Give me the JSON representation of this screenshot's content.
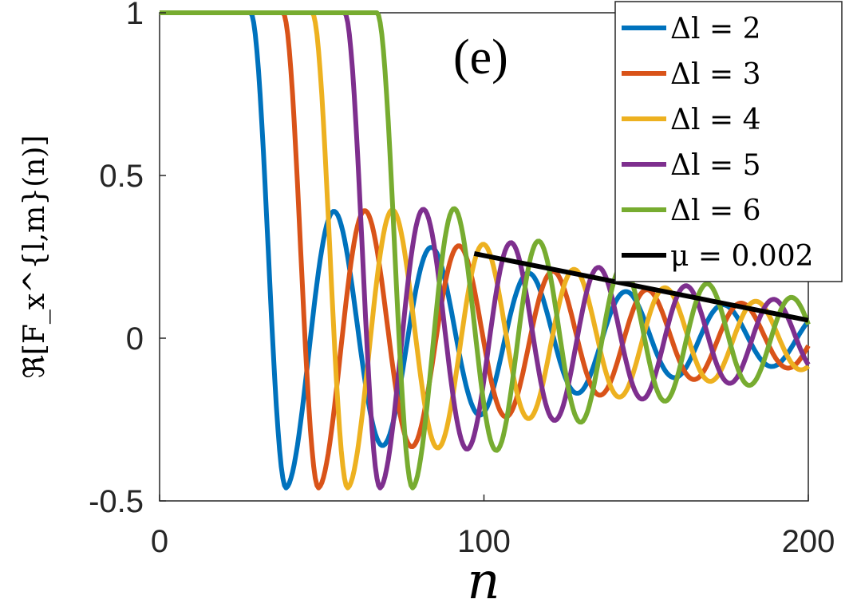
{
  "chart_data": {
    "type": "line",
    "panel_label": "(e)",
    "xlabel": "n",
    "ylabel": "ℜ[F_x^{l,m}(n)]",
    "xlim": [
      0,
      200
    ],
    "ylim": [
      -0.5,
      1
    ],
    "xticks": [
      "0",
      "100",
      "200"
    ],
    "yticks": [
      "-0.5",
      "0",
      "0.5",
      "1"
    ],
    "legend_position": "top-right",
    "series": [
      {
        "name": "Δl = 2",
        "color": "#0072BD",
        "onset": 28,
        "period": 30
      },
      {
        "name": "Δl = 3",
        "color": "#D95319",
        "onset": 38,
        "period": 29
      },
      {
        "name": "Δl = 4",
        "color": "#EDB120",
        "onset": 47,
        "period": 28
      },
      {
        "name": "Δl = 5",
        "color": "#7E2F8E",
        "onset": 57,
        "period": 27
      },
      {
        "name": "Δl = 6",
        "color": "#77AC30",
        "onset": 67,
        "period": 26
      }
    ],
    "fit_line": {
      "name": "μ = 0.002",
      "color": "#000000",
      "x": [
        97,
        200
      ],
      "y": [
        0.26,
        0.055
      ]
    }
  }
}
